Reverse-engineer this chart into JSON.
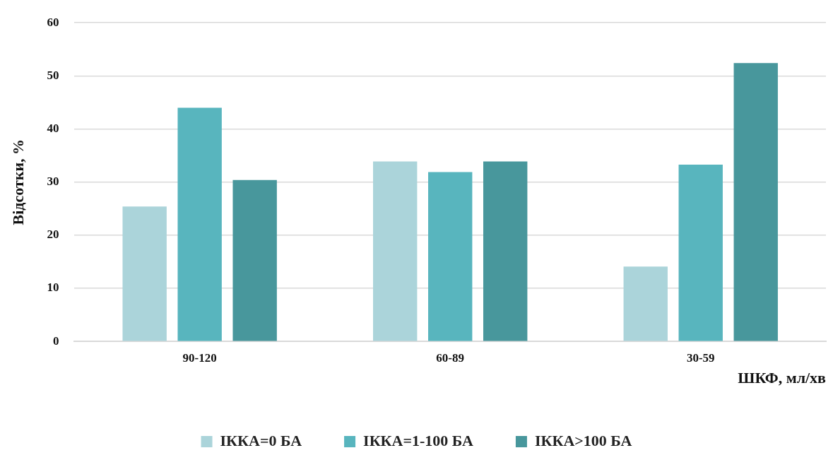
{
  "chart_data": {
    "type": "bar",
    "xlabel": "ШКФ, мл/хв",
    "ylabel": "Відсотки, %",
    "categories": [
      "90-120",
      "60-89",
      "30-59"
    ],
    "series": [
      {
        "name": "ІККА=0 БА",
        "color": "#abd4da",
        "values": [
          25.4,
          33.9,
          14.1
        ]
      },
      {
        "name": "ІККА=1-100 БА",
        "color": "#58b5be",
        "values": [
          44,
          31.9,
          33.3
        ]
      },
      {
        "name": "ІККА>100 БА",
        "color": "#48979c",
        "values": [
          30.4,
          33.9,
          52.4
        ]
      }
    ],
    "ylim": [
      0,
      60
    ],
    "yticks": [
      0,
      10,
      20,
      30,
      40,
      50,
      60
    ],
    "grid": "y",
    "legend": "bottom"
  }
}
